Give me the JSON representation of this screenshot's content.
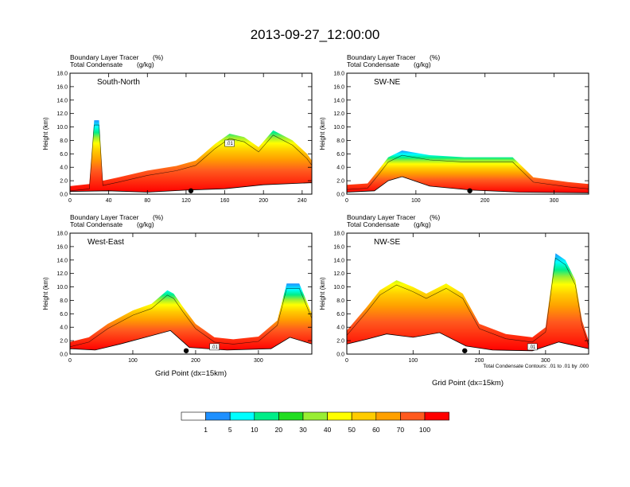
{
  "figure": {
    "title": "2013-09-27_12:00:00",
    "x_axis_label": "Grid Point (dx=15km)",
    "contour_note": "Total Condensate Contours: .01 to .01 by .000"
  },
  "colors": {
    "levels": [
      "1",
      "5",
      "10",
      "20",
      "30",
      "40",
      "50",
      "60",
      "70",
      "100"
    ],
    "swatches": [
      "#ffffff",
      "#1e90ff",
      "#00ffff",
      "#00ee88",
      "#22dd22",
      "#99ee33",
      "#ffff00",
      "#ffcc00",
      "#ffa000",
      "#ff5a1e",
      "#ff0000"
    ]
  },
  "chart_data": [
    {
      "type": "contour-cross-section",
      "panel": "South-North",
      "header_left_1": "Boundary Layer Tracer",
      "header_unit_1": "(%)",
      "header_left_2": "Total Condensate",
      "header_unit_2": "(g/kg)",
      "ylabel": "Height (km)",
      "xlabel": "",
      "xlim": [
        0,
        250
      ],
      "ylim": [
        0,
        18
      ],
      "xticks": [
        "0",
        "40",
        "80",
        "120",
        "160",
        "200",
        "240"
      ],
      "yticks": [
        "0.0",
        "2.0",
        "4.0",
        "6.0",
        "8.0",
        "10.0",
        "12.0",
        "14.0",
        "16.0",
        "18.0"
      ],
      "marker_x": 125,
      "contour_label": ".01",
      "tracer_top_profile": [
        [
          0,
          1.2
        ],
        [
          20,
          1.5
        ],
        [
          25,
          11
        ],
        [
          30,
          11
        ],
        [
          34,
          2
        ],
        [
          50,
          2.5
        ],
        [
          80,
          3.5
        ],
        [
          110,
          4.2
        ],
        [
          130,
          5
        ],
        [
          150,
          7.5
        ],
        [
          165,
          9
        ],
        [
          180,
          8.5
        ],
        [
          195,
          7
        ],
        [
          210,
          9.5
        ],
        [
          230,
          8
        ],
        [
          245,
          6
        ],
        [
          250,
          5
        ]
      ],
      "terrain_profile": [
        [
          0,
          0.4
        ],
        [
          40,
          0.5
        ],
        [
          80,
          0.3
        ],
        [
          120,
          0.6
        ],
        [
          160,
          0.8
        ],
        [
          200,
          1.4
        ],
        [
          250,
          1.7
        ]
      ]
    },
    {
      "type": "contour-cross-section",
      "panel": "SW-NE",
      "header_left_1": "Boundary Layer Tracer",
      "header_unit_1": "(%)",
      "header_left_2": "Total Condensate",
      "header_unit_2": "(g/kg)",
      "ylabel": "Height (km)",
      "xlabel": "",
      "xlim": [
        0,
        350
      ],
      "ylim": [
        0,
        18
      ],
      "xticks": [
        "0",
        "100",
        "200",
        "300"
      ],
      "yticks": [
        "0.0",
        "2.0",
        "4.0",
        "6.0",
        "8.0",
        "10.0",
        "12.0",
        "14.0",
        "16.0",
        "18.0"
      ],
      "marker_x": 178,
      "contour_label": "",
      "tracer_top_profile": [
        [
          0,
          1.4
        ],
        [
          30,
          1.6
        ],
        [
          45,
          3.5
        ],
        [
          60,
          5.5
        ],
        [
          80,
          6.5
        ],
        [
          120,
          5.8
        ],
        [
          170,
          5.5
        ],
        [
          240,
          5.5
        ],
        [
          255,
          4
        ],
        [
          270,
          2.5
        ],
        [
          320,
          1.8
        ],
        [
          350,
          1.5
        ]
      ],
      "terrain_profile": [
        [
          0,
          0.3
        ],
        [
          40,
          0.5
        ],
        [
          60,
          2.0
        ],
        [
          80,
          2.6
        ],
        [
          120,
          1.2
        ],
        [
          180,
          0.6
        ],
        [
          250,
          0.3
        ],
        [
          350,
          0.2
        ]
      ]
    },
    {
      "type": "contour-cross-section",
      "panel": "West-East",
      "header_left_1": "Boundary Layer Tracer",
      "header_unit_1": "(%)",
      "header_left_2": "Total Condensate",
      "header_unit_2": "(g/kg)",
      "ylabel": "Height (km)",
      "xlabel": "Grid Point (dx=15km)",
      "xlim": [
        0,
        385
      ],
      "ylim": [
        0,
        18
      ],
      "xticks": [
        "0",
        "100",
        "200",
        "300"
      ],
      "yticks": [
        "0.0",
        "2.0",
        "4.0",
        "6.0",
        "8.0",
        "10.0",
        "12.0",
        "14.0",
        "16.0",
        "18.0"
      ],
      "marker_x": 185,
      "contour_label": ".01",
      "tracer_top_profile": [
        [
          0,
          1.8
        ],
        [
          30,
          2.5
        ],
        [
          60,
          4.5
        ],
        [
          100,
          6.5
        ],
        [
          130,
          7.5
        ],
        [
          155,
          9.5
        ],
        [
          165,
          9
        ],
        [
          180,
          7
        ],
        [
          200,
          4.5
        ],
        [
          230,
          2.5
        ],
        [
          260,
          2.2
        ],
        [
          300,
          2.6
        ],
        [
          330,
          5
        ],
        [
          345,
          10.5
        ],
        [
          365,
          10.5
        ],
        [
          385,
          6
        ]
      ],
      "terrain_profile": [
        [
          0,
          0.8
        ],
        [
          40,
          0.6
        ],
        [
          80,
          1.5
        ],
        [
          120,
          2.5
        ],
        [
          160,
          3.5
        ],
        [
          190,
          1.0
        ],
        [
          250,
          0.6
        ],
        [
          320,
          0.8
        ],
        [
          350,
          2.5
        ],
        [
          385,
          1.5
        ]
      ]
    },
    {
      "type": "contour-cross-section",
      "panel": "NW-SE",
      "header_left_1": "Boundary Layer Tracer",
      "header_unit_1": "(%)",
      "header_left_2": "Total Condensate",
      "header_unit_2": "(g/kg)",
      "ylabel": "Height (km)",
      "xlabel": "Grid Point (dx=15km)",
      "xlim": [
        0,
        365
      ],
      "ylim": [
        0,
        18
      ],
      "xticks": [
        "0",
        "100",
        "200",
        "300"
      ],
      "yticks": [
        "0.0",
        "2.0",
        "4.0",
        "6.0",
        "8.0",
        "10.0",
        "12.0",
        "14.0",
        "16.0",
        "18.0"
      ],
      "marker_x": 178,
      "contour_label": ".01",
      "tracer_top_profile": [
        [
          0,
          3.5
        ],
        [
          30,
          7
        ],
        [
          50,
          9.5
        ],
        [
          75,
          11
        ],
        [
          100,
          10
        ],
        [
          120,
          9
        ],
        [
          150,
          10.5
        ],
        [
          175,
          9
        ],
        [
          200,
          4.5
        ],
        [
          240,
          3
        ],
        [
          280,
          2.5
        ],
        [
          300,
          4
        ],
        [
          315,
          15
        ],
        [
          330,
          14
        ],
        [
          345,
          11
        ],
        [
          355,
          5
        ],
        [
          365,
          2
        ]
      ],
      "terrain_profile": [
        [
          0,
          1.5
        ],
        [
          30,
          2.2
        ],
        [
          60,
          3.0
        ],
        [
          100,
          2.5
        ],
        [
          140,
          3.2
        ],
        [
          180,
          1.2
        ],
        [
          220,
          0.6
        ],
        [
          280,
          0.5
        ],
        [
          320,
          1.8
        ],
        [
          365,
          0.8
        ]
      ]
    }
  ]
}
